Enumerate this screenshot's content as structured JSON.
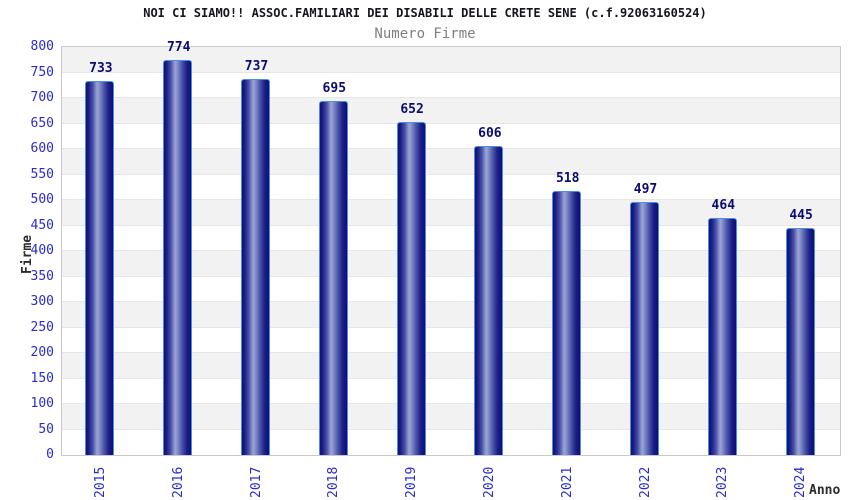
{
  "header": {
    "title": "NOI CI SIAMO!! ASSOC.FAMILIARI DEI DISABILI DELLE CRETE SENE (c.f.92063160524)",
    "subtitle": "Numero Firme"
  },
  "chart_data": {
    "type": "bar",
    "title": "NOI CI SIAMO!! ASSOC.FAMILIARI DEI DISABILI DELLE CRETE SENE (c.f.92063160524)",
    "subtitle": "Numero Firme",
    "categories": [
      "2015",
      "2016",
      "2017",
      "2018",
      "2019",
      "2020",
      "2021",
      "2022",
      "2023",
      "2024"
    ],
    "values": [
      733,
      774,
      737,
      695,
      652,
      606,
      518,
      497,
      464,
      445
    ],
    "xlabel": "Anno",
    "ylabel": "Firme",
    "ylim": [
      0,
      800
    ],
    "ytick_step": 50,
    "grid": "horizontal-alternating-bands",
    "legend_position": "none",
    "value_labels": "above-bars",
    "x_tick_rotation_degrees": 90
  },
  "colors": {
    "axis_tick_blue": "#2b2bcc",
    "value_label_navy": "#0b0b74",
    "bar_gradient_dark": "#101078",
    "bar_gradient_highlight": "#9ba4d6",
    "bar_border_lightblue": "#4a8fdf",
    "band_gray": "#f2f2f2",
    "band_white": "#ffffff",
    "plot_border_gray": "#c9c9c9",
    "title_color": "#15151e",
    "subtitle_gray": "#7f7f7f",
    "axis_title_color": "#2c2c2c",
    "background": "#ffffff"
  }
}
